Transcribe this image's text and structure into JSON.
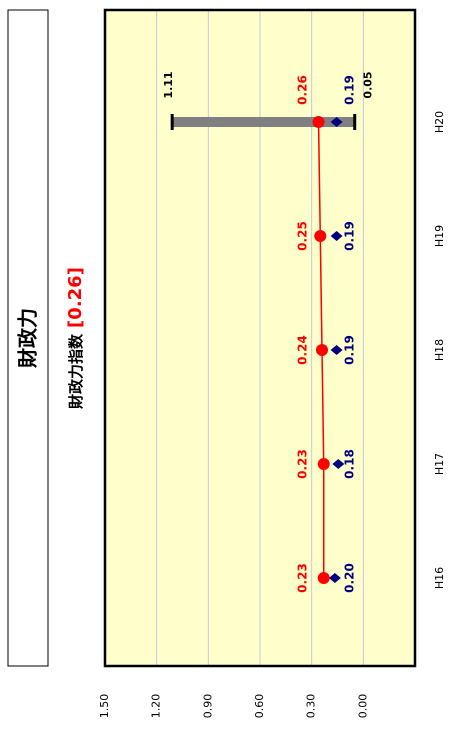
{
  "chart_data": {
    "type": "line",
    "title": "財政力",
    "subtitle": "財政力指数",
    "subtitle_value": "[0.26]",
    "categories": [
      "H16",
      "H17",
      "H18",
      "H19",
      "H20"
    ],
    "series": [
      {
        "color": "#ff0000",
        "marker": "circle",
        "values": [
          0.23,
          0.23,
          0.24,
          0.25,
          0.26
        ],
        "value_labels": [
          "0.23",
          "0.23",
          "0.24",
          "0.25",
          "0.26"
        ]
      },
      {
        "color": "#000080",
        "marker": "diamond",
        "values": [
          0.2,
          0.18,
          0.19,
          0.19,
          0.19
        ],
        "value_labels": [
          "0.20",
          "0.18",
          "0.19",
          "0.19",
          "0.19"
        ]
      }
    ],
    "range_max": [
      null,
      null,
      null,
      null,
      1.11
    ],
    "range_min": [
      null,
      null,
      null,
      null,
      0.05
    ],
    "range_color": "#808080",
    "ylim": [
      -0.3,
      1.5
    ],
    "yticks": [
      {
        "value": 1.5,
        "label": "1.50"
      },
      {
        "value": 1.2,
        "label": "1.20"
      },
      {
        "value": 0.9,
        "label": "0.90"
      },
      {
        "value": 0.6,
        "label": "0.60"
      },
      {
        "value": 0.3,
        "label": "0.30"
      },
      {
        "value": 0,
        "label": "0.00"
      }
    ],
    "grid": true
  }
}
